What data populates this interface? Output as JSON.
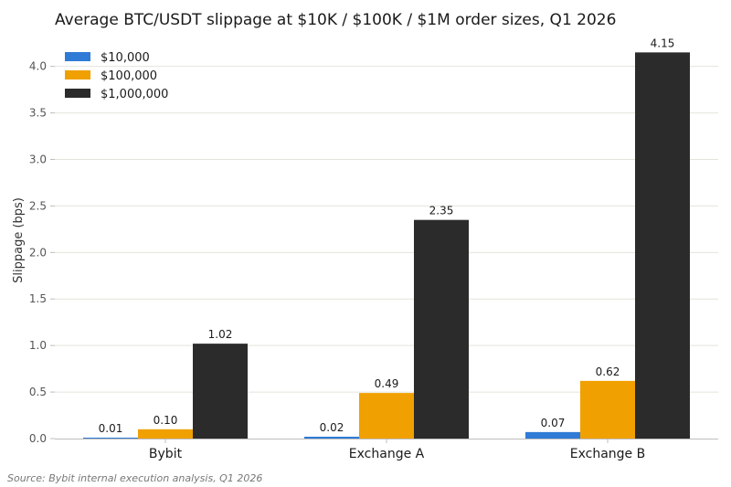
{
  "chart_data": {
    "type": "bar",
    "title": "Average BTC/USDT slippage at $10K / $100K / $1M order sizes, Q1 2026",
    "xlabel": "",
    "ylabel": "Slippage (bps)",
    "categories": [
      "Bybit",
      "Exchange A",
      "Exchange B"
    ],
    "series": [
      {
        "name": "$10,000",
        "color": "#2f7bd6",
        "values": [
          0.01,
          0.02,
          0.07
        ],
        "labels": [
          "0.01",
          "0.02",
          "0.07"
        ]
      },
      {
        "name": "$100,000",
        "color": "#f0a000",
        "values": [
          0.1,
          0.49,
          0.62
        ],
        "labels": [
          "0.10",
          "0.49",
          "0.62"
        ]
      },
      {
        "name": "$1,000,000",
        "color": "#2b2b2b",
        "values": [
          1.02,
          2.35,
          4.15
        ],
        "labels": [
          "1.02",
          "2.35",
          "4.15"
        ]
      }
    ],
    "ylim": [
      0,
      4.35
    ],
    "yticks": [
      0.0,
      0.5,
      1.0,
      1.5,
      2.0,
      2.5,
      3.0,
      3.5,
      4.0
    ],
    "ytick_labels": [
      "0.0",
      "0.5",
      "1.0",
      "1.5",
      "2.0",
      "2.5",
      "3.0",
      "3.5",
      "4.0"
    ],
    "grid": true,
    "legend_position": "top-left",
    "source": "Source: Bybit internal execution analysis, Q1 2026"
  }
}
